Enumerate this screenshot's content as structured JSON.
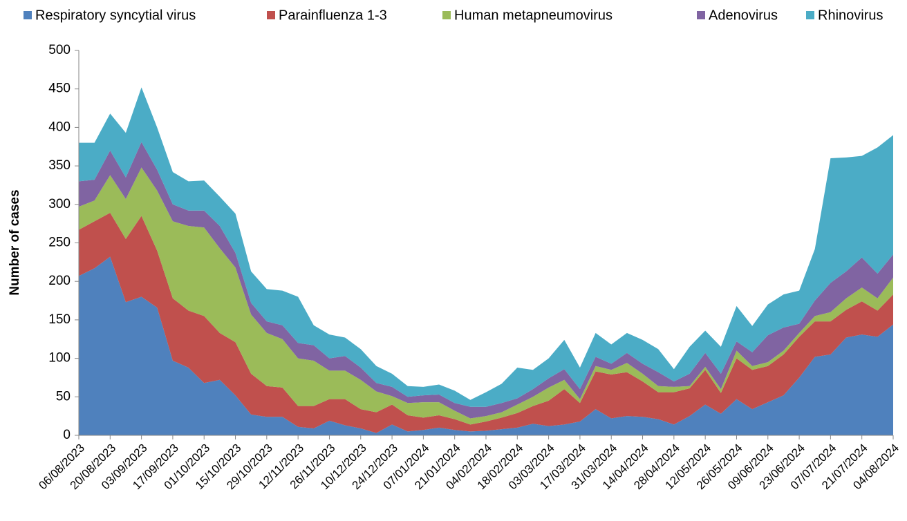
{
  "chart_data": {
    "type": "stacked_area",
    "y_label": "Number of cases",
    "categories": [
      "06/08/2023",
      null,
      "20/08/2023",
      null,
      "03/09/2023",
      null,
      "17/09/2023",
      null,
      "01/10/2023",
      null,
      "15/10/2023",
      null,
      "29/10/2023",
      null,
      "12/11/2023",
      null,
      "26/11/2023",
      null,
      "10/12/2023",
      null,
      "24/12/2023",
      null,
      "07/01/2024",
      null,
      "21/01/2024",
      null,
      "04/02/2024",
      null,
      "18/02/2024",
      null,
      "03/03/2024",
      null,
      "17/03/2024",
      null,
      "31/03/2024",
      null,
      "14/04/2024",
      null,
      "28/04/2024",
      null,
      "12/05/2024",
      null,
      "26/05/2024",
      null,
      "09/06/2024",
      null,
      "23/06/2024",
      null,
      "07/07/2024",
      null,
      "21/07/2024",
      null,
      "04/08/2024"
    ],
    "series": [
      {
        "name": "Respiratory syncytial virus",
        "color": "#4f81bd",
        "values": [
          207,
          217,
          232,
          173,
          180,
          166,
          97,
          88,
          68,
          72,
          52,
          27,
          24,
          24,
          11,
          9,
          19,
          13,
          9,
          3,
          14,
          5,
          7,
          10,
          7,
          5,
          6,
          8,
          10,
          15,
          12,
          14,
          18,
          34,
          22,
          25,
          24,
          21,
          14,
          25,
          40,
          28,
          47,
          34,
          43,
          52,
          75,
          102,
          105,
          127,
          131,
          128,
          144
        ]
      },
      {
        "name": "Parainfluenza 1-3",
        "color": "#c0504d",
        "values": [
          60,
          61,
          57,
          82,
          105,
          74,
          81,
          74,
          87,
          61,
          69,
          53,
          40,
          38,
          27,
          29,
          28,
          34,
          25,
          27,
          26,
          21,
          16,
          16,
          14,
          9,
          12,
          15,
          19,
          23,
          33,
          46,
          24,
          49,
          57,
          57,
          46,
          35,
          42,
          36,
          45,
          27,
          53,
          51,
          47,
          53,
          53,
          46,
          43,
          36,
          43,
          34,
          39
        ]
      },
      {
        "name": "Human metapneumovirus",
        "color": "#9bbb59",
        "values": [
          30,
          27,
          49,
          52,
          63,
          78,
          100,
          110,
          115,
          110,
          97,
          77,
          69,
          63,
          62,
          59,
          37,
          37,
          38,
          27,
          11,
          16,
          20,
          17,
          11,
          8,
          7,
          7,
          11,
          12,
          17,
          12,
          5,
          7,
          6,
          12,
          10,
          8,
          7,
          3,
          4,
          5,
          10,
          5,
          5,
          5,
          5,
          7,
          12,
          15,
          18,
          16,
          22
        ]
      },
      {
        "name": "Adenovirus",
        "color": "#8064a2",
        "values": [
          33,
          27,
          32,
          28,
          33,
          27,
          22,
          20,
          22,
          29,
          19,
          15,
          15,
          18,
          20,
          20,
          16,
          19,
          16,
          11,
          12,
          8,
          9,
          10,
          10,
          15,
          12,
          12,
          8,
          10,
          12,
          14,
          13,
          12,
          8,
          13,
          13,
          18,
          7,
          16,
          18,
          20,
          12,
          18,
          35,
          30,
          12,
          20,
          38,
          35,
          39,
          32,
          30
        ]
      },
      {
        "name": "Rhinovirus",
        "color": "#4bacc6",
        "values": [
          50,
          48,
          48,
          58,
          71,
          55,
          42,
          38,
          39,
          38,
          51,
          41,
          42,
          45,
          60,
          26,
          31,
          24,
          24,
          22,
          17,
          14,
          11,
          13,
          16,
          9,
          19,
          25,
          40,
          25,
          26,
          38,
          28,
          31,
          25,
          26,
          31,
          30,
          16,
          35,
          29,
          35,
          46,
          34,
          40,
          43,
          43,
          67,
          162,
          148,
          132,
          164,
          155
        ]
      }
    ],
    "ylim": [
      0,
      500
    ],
    "yticks": [
      0,
      50,
      100,
      150,
      200,
      250,
      300,
      350,
      400,
      450,
      500
    ],
    "legend": "top",
    "grid": false
  }
}
